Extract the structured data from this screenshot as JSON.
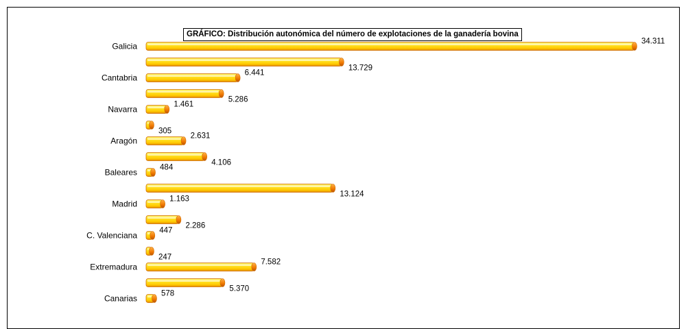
{
  "chart_data": {
    "type": "bar",
    "orientation": "horizontal",
    "title": "GRÁFICO: Distribución autonómica del número de explotaciones de la ganadería bovina",
    "categories": [
      "Galicia",
      "",
      "Cantabria",
      "",
      "Navarra",
      "",
      "Aragón",
      "",
      "Baleares",
      "",
      "Madrid",
      "",
      "C. Valenciana",
      "",
      "Extremadura",
      "",
      "Canarias"
    ],
    "values": [
      34311,
      13729,
      6441,
      5286,
      1461,
      305,
      2631,
      4106,
      484,
      13124,
      1163,
      2286,
      447,
      247,
      7582,
      5370,
      578
    ],
    "data_labels": [
      "34.311",
      "13.729",
      "6.441",
      "5.286",
      "1.461",
      "305",
      "2.631",
      "4.106",
      "484",
      "13.124",
      "1.163",
      "2.286",
      "447",
      "247",
      "7.582",
      "5.370",
      "578"
    ],
    "xlim": [
      0,
      34311
    ],
    "grid": false,
    "legend": "none",
    "colors": {
      "bar_light": "#fff36a",
      "bar_mid": "#ffd700",
      "bar_dark": "#e9a400",
      "bar_end": "#f07800",
      "bar_edge": "#cf6a00"
    }
  }
}
